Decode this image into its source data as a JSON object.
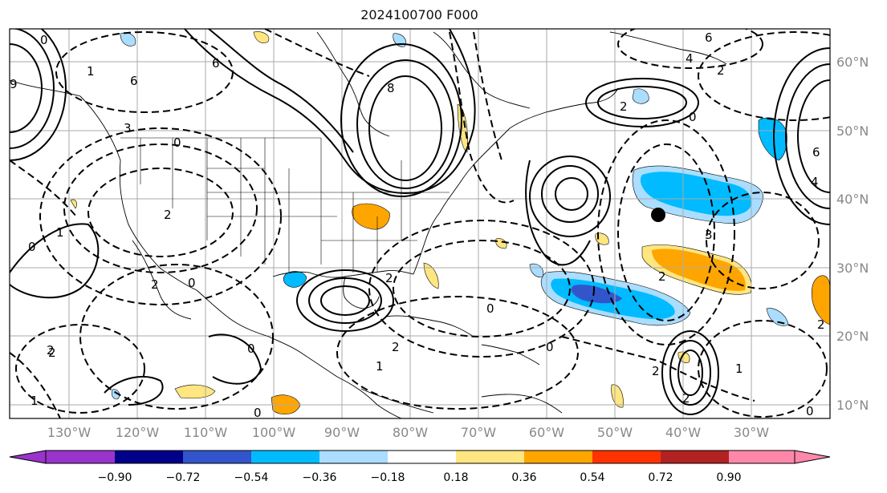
{
  "title": "2024100700 F000",
  "lon_ticks": [
    "130°W",
    "120°W",
    "110°W",
    "100°W",
    "90°W",
    "80°W",
    "70°W",
    "60°W",
    "50°W",
    "40°W",
    "30°W"
  ],
  "lat_ticks": [
    "60°N",
    "50°N",
    "40°N",
    "30°N",
    "20°N",
    "10°N"
  ],
  "colorbar": {
    "levels": [
      "−0.90",
      "−0.72",
      "−0.54",
      "−0.36",
      "−0.18",
      "0.18",
      "0.36",
      "0.54",
      "0.72",
      "0.90"
    ],
    "colors": [
      "#9933cc",
      "#000088",
      "#3355cc",
      "#00bbff",
      "#aaddff",
      "#ffffff",
      "#ffe680",
      "#ffa500",
      "#ff3300",
      "#b22222",
      "#ff88aa"
    ]
  },
  "contour_labels": [
    "0",
    "6",
    "4",
    "2",
    "6",
    "6",
    "1",
    "3",
    "0",
    "8",
    "2",
    "0",
    "6",
    "4",
    "2",
    "2",
    "2",
    "0",
    "9",
    "0",
    "1",
    "2",
    "2",
    "0",
    "3",
    "2",
    "1",
    "0",
    "0",
    "2",
    "2",
    "1",
    "0",
    "0",
    "1",
    "2",
    "2"
  ],
  "markers": [
    {
      "name": "circle",
      "color": "#000000"
    }
  ]
}
